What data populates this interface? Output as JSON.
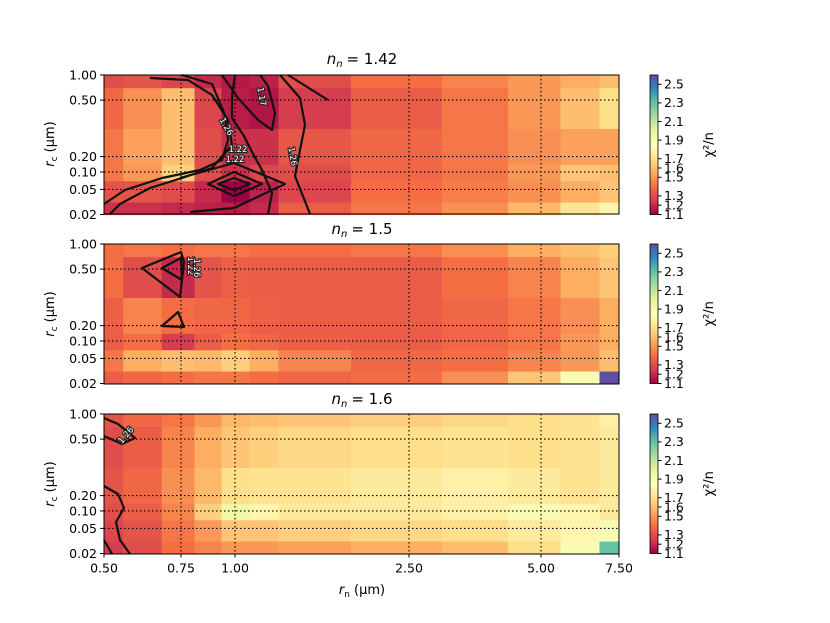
{
  "chart_data": {
    "type": "heatmap",
    "xlabel": "r_n (μm)",
    "ylabel": "r_c (μm)",
    "colorbar_label": "χ²/n",
    "colormap": "Spectral",
    "x_ticks": [
      0.5,
      0.75,
      1.0,
      2.5,
      5.0,
      7.5
    ],
    "x_tick_labels": [
      "0.50",
      "0.75",
      "1.00",
      "2.50",
      "5.00",
      "7.50"
    ],
    "y_ticks": [
      0.02,
      0.05,
      0.1,
      0.2,
      0.5,
      1.0
    ],
    "y_tick_labels": [
      "0.02",
      "0.05",
      "0.10",
      "0.20",
      "0.50",
      "1.00"
    ],
    "colorbar_ticks": [
      1.1,
      1.2,
      1.3,
      1.5,
      1.6,
      1.7,
      1.9,
      2.1,
      2.3,
      2.5
    ],
    "colorbar_tick_labels": [
      "1.1",
      "1.2",
      "1.3",
      "1.5",
      "1.6",
      "1.7",
      "1.9",
      "2.1",
      "2.3",
      "2.5"
    ],
    "colorbar_range": [
      1.1,
      2.6
    ],
    "grid": true,
    "x": [
      0.5,
      0.625,
      0.75,
      0.875,
      1.0,
      1.25,
      1.5,
      2.5,
      3.75,
      5.0,
      6.25,
      7.5
    ],
    "y": [
      0.02,
      0.05,
      0.1,
      0.2,
      0.5,
      1.0
    ],
    "panels": [
      {
        "title_n": "n",
        "title_sub": "n",
        "title_value": "= 1.42",
        "z": [
          [
            1.22,
            1.22,
            1.2,
            1.18,
            1.17,
            1.2,
            1.35,
            1.42,
            1.48,
            1.58,
            1.72,
            1.8
          ],
          [
            1.32,
            1.32,
            1.3,
            1.2,
            1.1,
            1.18,
            1.28,
            1.4,
            1.44,
            1.48,
            1.55,
            1.62
          ],
          [
            1.42,
            1.5,
            1.65,
            1.3,
            1.22,
            1.28,
            1.3,
            1.38,
            1.42,
            1.5,
            1.62,
            1.6
          ],
          [
            1.42,
            1.52,
            1.6,
            1.3,
            1.22,
            1.22,
            1.33,
            1.38,
            1.42,
            1.48,
            1.52,
            1.52
          ],
          [
            1.38,
            1.48,
            1.6,
            1.28,
            1.17,
            1.15,
            1.25,
            1.35,
            1.42,
            1.5,
            1.6,
            1.7
          ],
          [
            1.3,
            1.32,
            1.28,
            1.2,
            1.16,
            1.18,
            1.3,
            1.4,
            1.45,
            1.5,
            1.55,
            1.6
          ]
        ],
        "contour_labels": [
          "1.17",
          "1.26",
          "1.22",
          "1.22",
          "1.26"
        ]
      },
      {
        "title_n": "n",
        "title_sub": "n",
        "title_value": "= 1.5",
        "z": [
          [
            1.35,
            1.38,
            1.4,
            1.42,
            1.42,
            1.4,
            1.38,
            1.4,
            1.48,
            1.62,
            1.9,
            2.6
          ],
          [
            1.42,
            1.55,
            1.6,
            1.58,
            1.65,
            1.55,
            1.45,
            1.38,
            1.4,
            1.45,
            1.5,
            1.6
          ],
          [
            1.35,
            1.4,
            1.25,
            1.35,
            1.4,
            1.38,
            1.36,
            1.35,
            1.38,
            1.42,
            1.5,
            1.55
          ],
          [
            1.36,
            1.45,
            1.4,
            1.38,
            1.38,
            1.36,
            1.35,
            1.35,
            1.38,
            1.42,
            1.48,
            1.55
          ],
          [
            1.4,
            1.3,
            1.2,
            1.32,
            1.36,
            1.35,
            1.35,
            1.35,
            1.4,
            1.45,
            1.55,
            1.62
          ],
          [
            1.4,
            1.42,
            1.4,
            1.42,
            1.42,
            1.4,
            1.4,
            1.42,
            1.48,
            1.55,
            1.6,
            1.65
          ]
        ],
        "contour_labels": [
          "1.22",
          "1.26"
        ]
      },
      {
        "title_n": "n",
        "title_sub": "n",
        "title_value": "= 1.6",
        "z": [
          [
            1.25,
            1.3,
            1.4,
            1.45,
            1.5,
            1.5,
            1.52,
            1.55,
            1.6,
            1.7,
            1.9,
            2.3
          ],
          [
            1.28,
            1.32,
            1.42,
            1.5,
            1.62,
            1.62,
            1.65,
            1.68,
            1.7,
            1.75,
            1.8,
            1.9
          ],
          [
            1.3,
            1.35,
            1.45,
            1.65,
            1.95,
            1.8,
            1.75,
            1.75,
            1.78,
            1.9,
            1.8,
            1.75
          ],
          [
            1.32,
            1.38,
            1.48,
            1.58,
            1.7,
            1.72,
            1.72,
            1.75,
            1.78,
            1.75,
            1.72,
            1.75
          ],
          [
            1.3,
            1.35,
            1.45,
            1.55,
            1.62,
            1.65,
            1.68,
            1.7,
            1.72,
            1.7,
            1.72,
            1.75
          ],
          [
            1.32,
            1.38,
            1.42,
            1.5,
            1.58,
            1.6,
            1.62,
            1.65,
            1.68,
            1.7,
            1.72,
            1.78
          ]
        ],
        "contour_labels": [
          "1.26"
        ]
      }
    ]
  }
}
